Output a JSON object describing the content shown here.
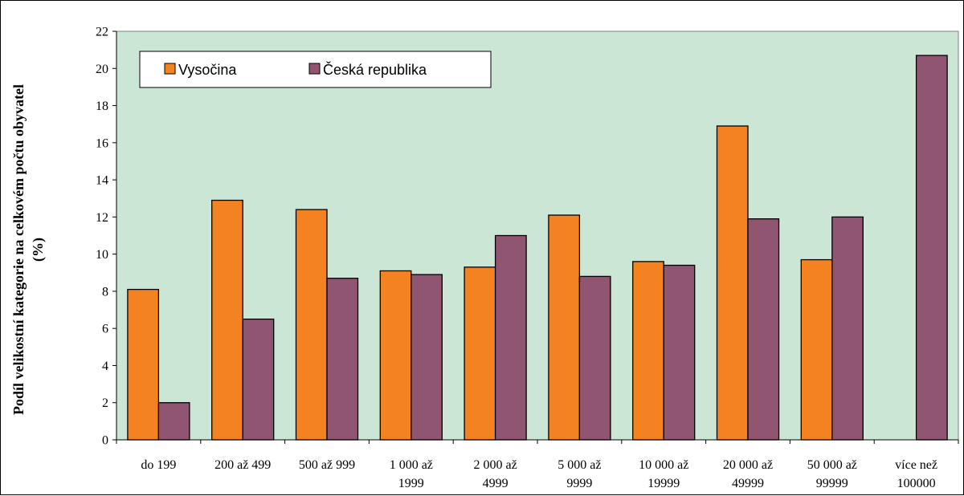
{
  "chart_data": {
    "type": "bar",
    "ylabel": "Podíl velikostní kategorie na celkovém počtu obyvatel (%)",
    "ylabel_lines": [
      "Podíl velikostní kategorie na celkovém počtu obyvatel",
      "(%)"
    ],
    "ylim": [
      0,
      22
    ],
    "yticks": [
      0,
      2,
      4,
      6,
      8,
      10,
      12,
      14,
      16,
      18,
      20,
      22
    ],
    "categories": [
      [
        "do 199"
      ],
      [
        "200 až 499"
      ],
      [
        "500 až 999"
      ],
      [
        "1 000 až",
        "1999"
      ],
      [
        "2 000 až",
        "4999"
      ],
      [
        "5 000 až",
        "9999"
      ],
      [
        "10 000 až",
        "19999"
      ],
      [
        "20 000 až",
        "49999"
      ],
      [
        "50 000 až",
        "99999"
      ],
      [
        "více než",
        "100000"
      ]
    ],
    "series": [
      {
        "name": "Vysočina",
        "color": "#f58220",
        "values": [
          8.1,
          12.9,
          12.4,
          9.1,
          9.3,
          12.1,
          9.6,
          16.9,
          9.7,
          0
        ]
      },
      {
        "name": "Česká republika",
        "color": "#8f5571",
        "values": [
          2.0,
          6.5,
          8.7,
          8.9,
          11.0,
          8.8,
          9.4,
          11.9,
          12.0,
          20.7
        ]
      }
    ],
    "plot_background": "#cce6d5",
    "grid": false,
    "legend_position": "top-left"
  }
}
